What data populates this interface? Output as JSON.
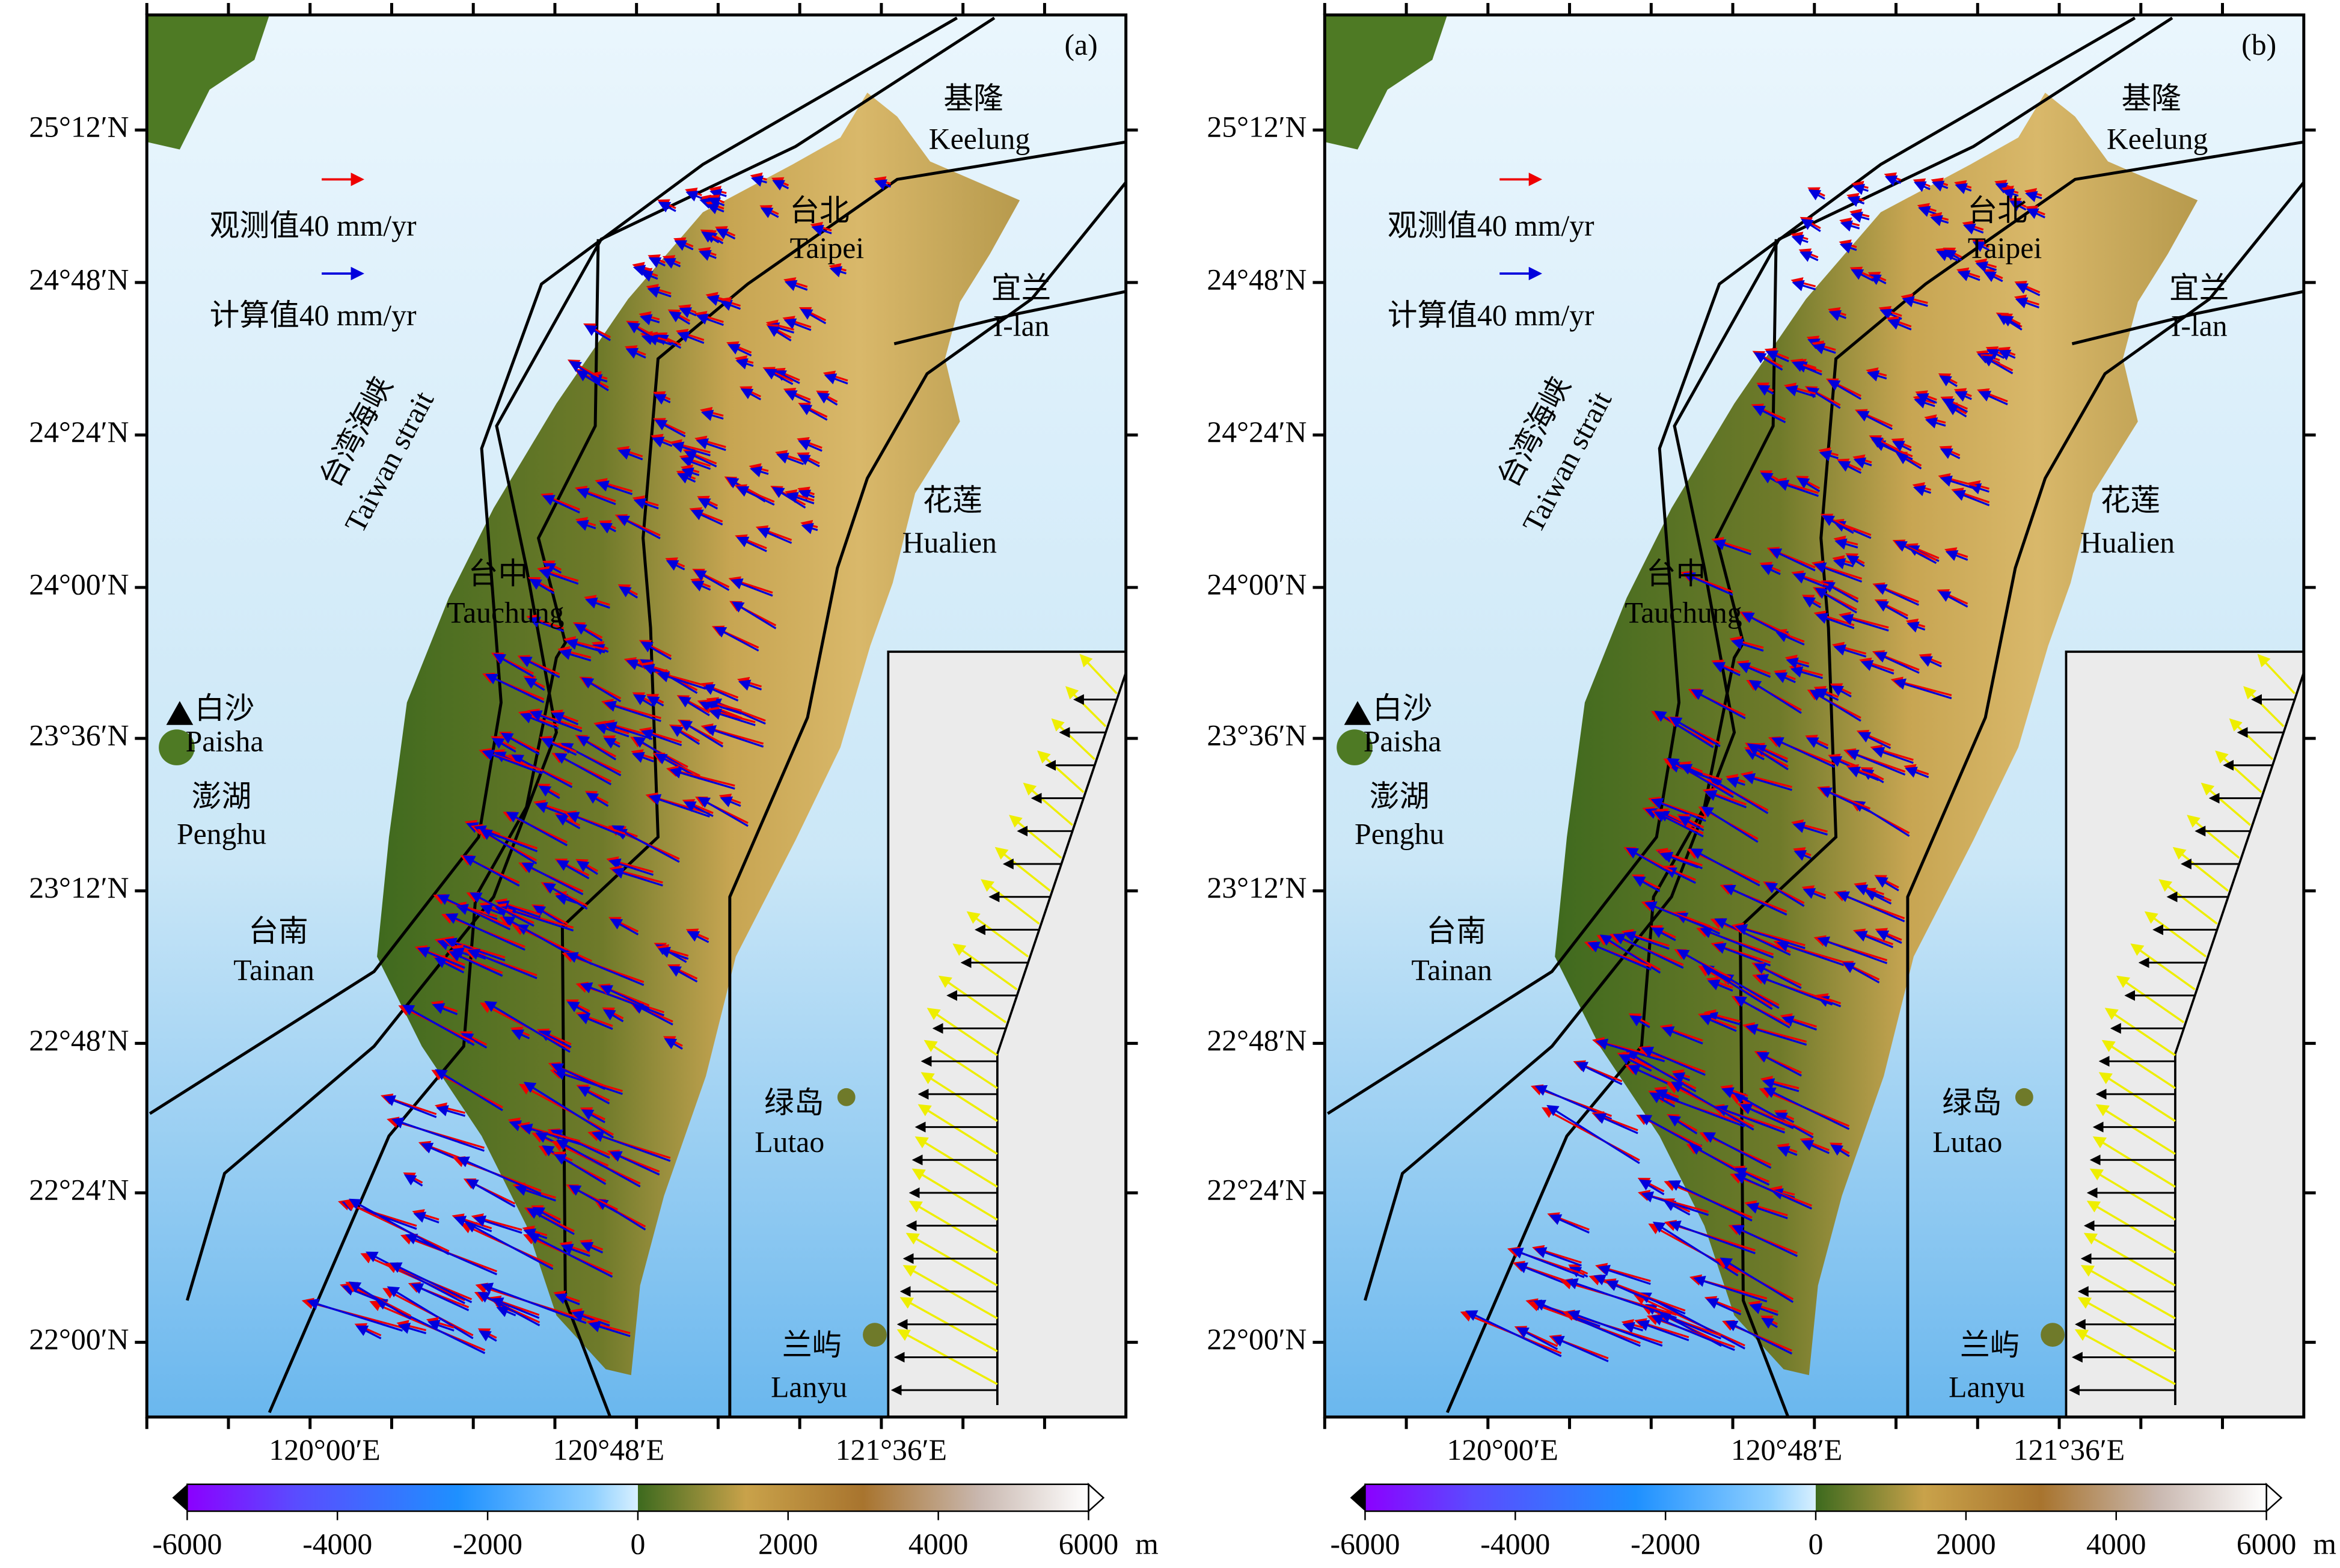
{
  "panels": [
    {
      "label": "(a)"
    },
    {
      "label": "(b)"
    }
  ],
  "lat_ticks": [
    "25°12′N",
    "24°48′N",
    "24°24′N",
    "24°00′N",
    "23°36′N",
    "23°12′N",
    "22°48′N",
    "22°24′N",
    "22°00′N"
  ],
  "lon_ticks": [
    "120°00′E",
    "120°48′E",
    "121°36′E"
  ],
  "legend": {
    "observed": "观测值40 mm/yr",
    "computed": "计算值40 mm/yr"
  },
  "places": [
    {
      "zh": "基隆",
      "en": "Keelung"
    },
    {
      "zh": "台北",
      "en": "Taipei"
    },
    {
      "zh": "宜兰",
      "en": "I-lan"
    },
    {
      "zh": "台湾海峡",
      "en": "Taiwan strait"
    },
    {
      "zh": "花莲",
      "en": "Hualien"
    },
    {
      "zh": "台中",
      "en": "Tauchung"
    },
    {
      "zh": "白沙",
      "en": "Paisha"
    },
    {
      "zh": "澎湖",
      "en": "Penghu"
    },
    {
      "zh": "台南",
      "en": "Tainan"
    },
    {
      "zh": "绿岛",
      "en": "Lutao"
    },
    {
      "zh": "兰屿",
      "en": "Lanyu"
    }
  ],
  "colorbar": {
    "ticks": [
      -6000,
      -4000,
      -2000,
      0,
      2000,
      4000,
      6000
    ],
    "unit": "m"
  }
}
